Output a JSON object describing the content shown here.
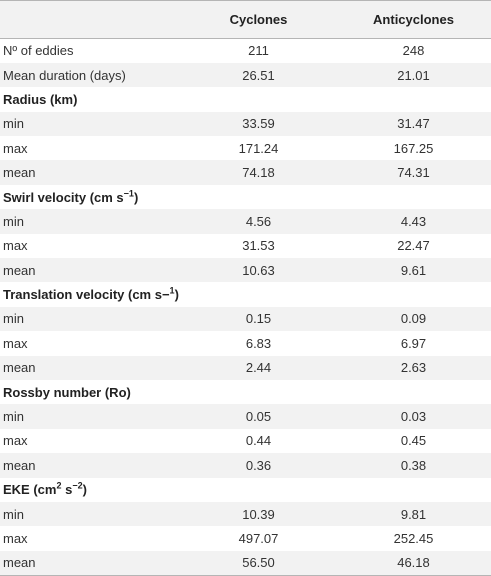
{
  "header": {
    "col1": "",
    "col2": "Cyclones",
    "col3": "Anticyclones"
  },
  "rows": [
    {
      "type": "data",
      "label": "Nº of eddies",
      "c": "211",
      "a": "248"
    },
    {
      "type": "data",
      "label": "Mean duration (days)",
      "c": "26.51",
      "a": "21.01"
    },
    {
      "type": "section",
      "label": "Radius (km)"
    },
    {
      "type": "data",
      "label": "min",
      "c": "33.59",
      "a": "31.47"
    },
    {
      "type": "data",
      "label": "max",
      "c": "171.24",
      "a": "167.25"
    },
    {
      "type": "data",
      "label": "mean",
      "c": "74.18",
      "a": "74.31"
    },
    {
      "type": "section",
      "label": "Swirl velocity (cm s",
      "sup": "−1",
      "tail": ")"
    },
    {
      "type": "data",
      "label": "min",
      "c": "4.56",
      "a": "4.43"
    },
    {
      "type": "data",
      "label": "max",
      "c": "31.53",
      "a": "22.47"
    },
    {
      "type": "data",
      "label": "mean",
      "c": "10.63",
      "a": "9.61"
    },
    {
      "type": "section",
      "label": "Translation velocity (cm s−",
      "sup": "1",
      "tail": ")"
    },
    {
      "type": "data",
      "label": "min",
      "c": "0.15",
      "a": "0.09"
    },
    {
      "type": "data",
      "label": "max",
      "c": "6.83",
      "a": "6.97"
    },
    {
      "type": "data",
      "label": "mean",
      "c": "2.44",
      "a": "2.63"
    },
    {
      "type": "section",
      "label": "Rossby number (Ro)"
    },
    {
      "type": "data",
      "label": "min",
      "c": "0.05",
      "a": "0.03"
    },
    {
      "type": "data",
      "label": "max",
      "c": "0.44",
      "a": "0.45"
    },
    {
      "type": "data",
      "label": "mean",
      "c": "0.36",
      "a": "0.38"
    },
    {
      "type": "section",
      "label": "EKE (cm",
      "sup": "2",
      "mid": " s",
      "sup2": "−2",
      "tail": ")"
    },
    {
      "type": "data",
      "label": "min",
      "c": "10.39",
      "a": "9.81"
    },
    {
      "type": "data",
      "label": "max",
      "c": "497.07",
      "a": "252.45"
    },
    {
      "type": "data",
      "label": "mean",
      "c": "56.50",
      "a": "46.18"
    }
  ]
}
